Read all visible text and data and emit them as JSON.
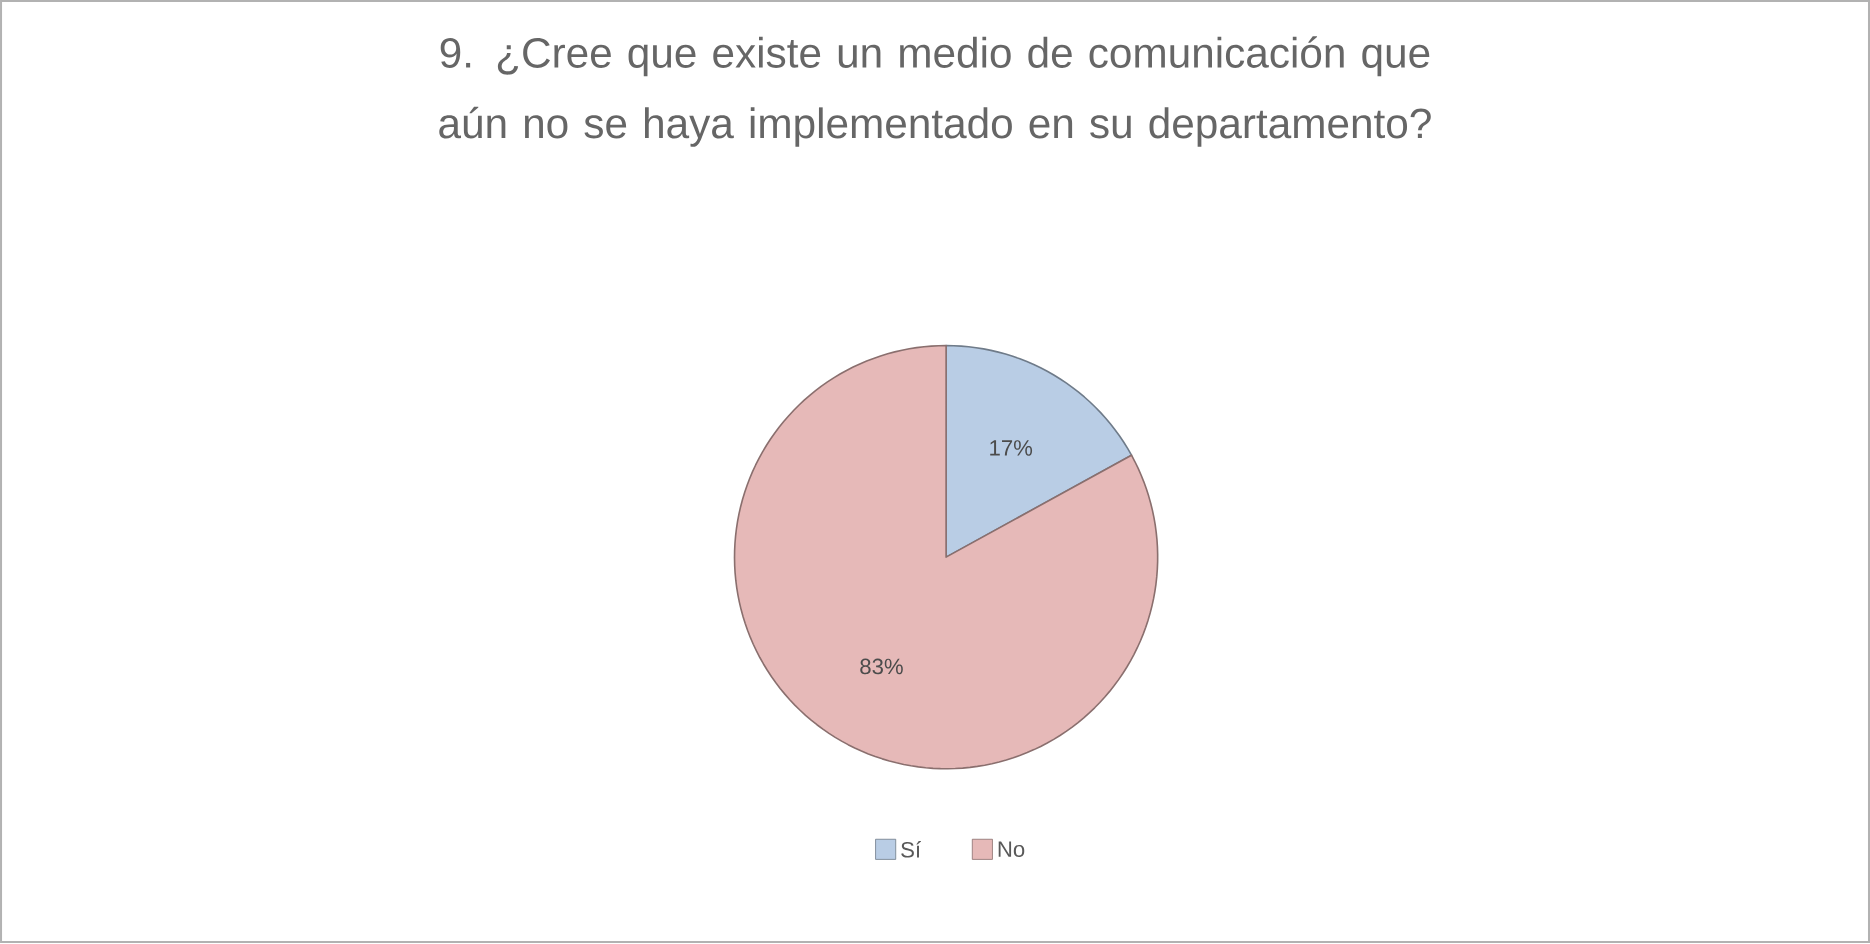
{
  "chart_data": {
    "type": "pie",
    "title": "9. ¿Cree que existe un medio de comunicación que aún no se haya implementado en su departamento?",
    "categories": [
      "Sí",
      "No"
    ],
    "values": [
      17,
      83
    ],
    "colors": [
      "#b9cde5",
      "#e6b9b8"
    ],
    "value_labels": [
      "17%",
      "83%"
    ],
    "legend": "bottom"
  }
}
